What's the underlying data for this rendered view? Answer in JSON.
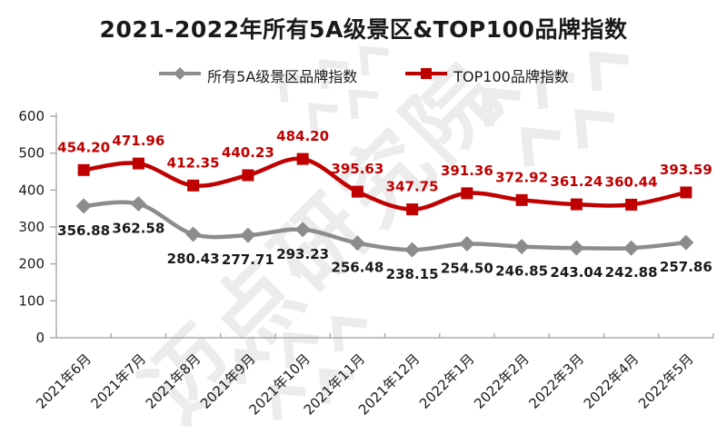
{
  "title": "2021-2022年所有5A级景区&TOP100品牌指数",
  "watermark": {
    "text": "迈点研究院"
  },
  "colors": {
    "gray_series": "#8C8C8C",
    "red_series": "#C00000",
    "dark_label": "#1A1A1A",
    "axis": "#9b9b9b",
    "watermark": "#ECECEC"
  },
  "chart_data": {
    "type": "line",
    "title": "2021-2022年所有5A级景区&TOP100品牌指数",
    "smooth": true,
    "grid": false,
    "legend_position": "top",
    "xlabel": "",
    "ylabel": "",
    "ylim": [
      0,
      600
    ],
    "yticks": [
      0,
      100,
      200,
      300,
      400,
      500,
      600
    ],
    "categories": [
      "2021年6月",
      "2021年7月",
      "2021年8月",
      "2021年9月",
      "2021年10月",
      "2021年11月",
      "2021年12月",
      "2022年1月",
      "2022年2月",
      "2022年3月",
      "2022年4月",
      "2022年5月"
    ],
    "series": [
      {
        "name": "所有5A级景区品牌指数",
        "color": "#8C8C8C",
        "marker": "diamond",
        "label_color": "#1A1A1A",
        "label_position": "below",
        "values": [
          356.88,
          362.58,
          280.43,
          277.71,
          293.23,
          256.48,
          238.15,
          254.5,
          246.85,
          243.04,
          242.88,
          257.86
        ]
      },
      {
        "name": "TOP100品牌指数",
        "color": "#C00000",
        "marker": "square",
        "label_color": "#C00000",
        "label_position": "above",
        "values": [
          454.2,
          471.96,
          412.35,
          440.23,
          484.2,
          395.63,
          347.75,
          391.36,
          372.92,
          361.24,
          360.44,
          393.59
        ]
      }
    ]
  }
}
